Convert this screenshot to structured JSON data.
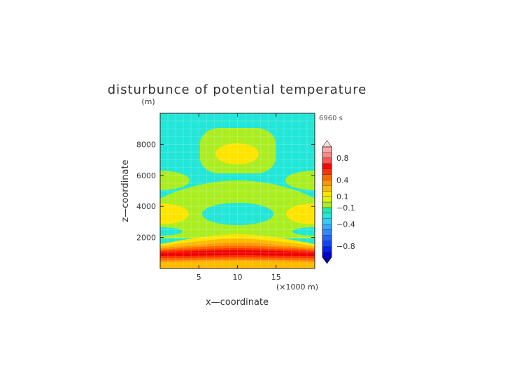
{
  "chart_data": {
    "type": "heatmap",
    "title": "disturbunce of potential temperature",
    "time_label": "6960 s",
    "xlabel": "x—coordinate",
    "x_units": "(×1000 m)",
    "ylabel": "z—coordinate",
    "y_units": "(m)",
    "xlim": [
      0,
      20
    ],
    "ylim": [
      0,
      10000
    ],
    "x_ticks": [
      5,
      10,
      15
    ],
    "y_ticks": [
      2000,
      4000,
      6000,
      8000
    ],
    "colorbar": {
      "levels": [
        -1.0,
        -0.9,
        -0.8,
        -0.7,
        -0.6,
        -0.5,
        -0.4,
        -0.3,
        -0.2,
        -0.1,
        0,
        0.1,
        0.2,
        0.3,
        0.4,
        0.5,
        0.6,
        0.7,
        0.8,
        0.9,
        1.0
      ],
      "colors": [
        "#0000d8",
        "#0022ee",
        "#1144ff",
        "#2266ff",
        "#3388ff",
        "#33aaff",
        "#33ccff",
        "#22e6d8",
        "#22e8b0",
        "#aaee22",
        "#dcf50a",
        "#ffe400",
        "#ffbb00",
        "#ff9500",
        "#ff6a00",
        "#ff3300",
        "#ff0000",
        "#ff5555",
        "#ff8888",
        "#ffaaaa"
      ],
      "labels": [
        "0.8",
        "0.4",
        "0.1",
        "−0.1",
        "−0.4",
        "−0.8"
      ],
      "label_values": [
        0.8,
        0.4,
        0.1,
        -0.1,
        -0.4,
        -0.8
      ],
      "extend": "both"
    },
    "regions": [
      {
        "description": "background",
        "value_range": [
          -0.4,
          -0.3
        ]
      },
      {
        "description": "upper centre blob",
        "x_center": 10,
        "z_center": 7550,
        "x_half_width": 5.3,
        "z_half_height": 1700,
        "value_range": [
          -0.2,
          -0.1
        ]
      },
      {
        "description": "upper centre core",
        "x_center": 10,
        "z_center": 7550,
        "x_half_width": 2.6,
        "z_half_height": 550,
        "value_range": [
          -0.1,
          0
        ]
      },
      {
        "description": "middle band",
        "z_range": [
          1900,
          5400
        ],
        "value_range": [
          -0.2,
          -0.1
        ]
      },
      {
        "description": "middle band left core",
        "x_center": 0,
        "z_center": 3550,
        "x_half_width": 2.1,
        "z_half_height": 700,
        "value_range": [
          -0.1,
          0
        ]
      },
      {
        "description": "middle band right core",
        "x_center": 20,
        "z_center": 3550,
        "x_half_width": 2.1,
        "z_half_height": 700,
        "value_range": [
          -0.1,
          0
        ]
      },
      {
        "description": "surface warm layer",
        "z_range": [
          0,
          2000
        ],
        "max_value": 0.6,
        "max_at_z": 1000
      }
    ]
  }
}
